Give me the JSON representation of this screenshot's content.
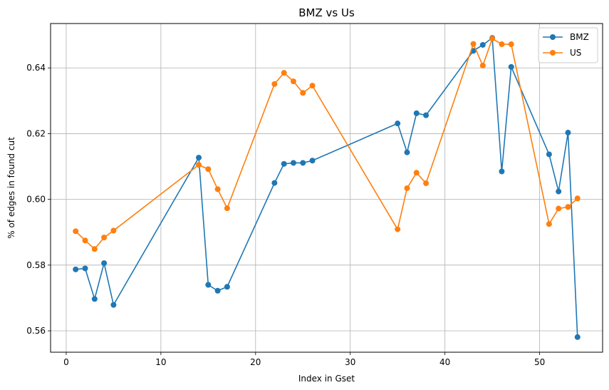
{
  "chart_data": {
    "type": "line",
    "title": "BMZ vs Us",
    "xlabel": "Index in Gset",
    "ylabel": "% of edges in found cut",
    "xlim": [
      -1.65,
      56.65
    ],
    "ylim": [
      0.5535,
      0.6535
    ],
    "xticks": [
      0,
      10,
      20,
      30,
      40,
      50
    ],
    "yticks": [
      0.56,
      0.58,
      0.6,
      0.62,
      0.64
    ],
    "ytick_labels": [
      "0.56",
      "0.58",
      "0.60",
      "0.62",
      "0.64"
    ],
    "grid": true,
    "legend_position": "top-right",
    "series": [
      {
        "name": "BMZ",
        "color": "#1f77b4",
        "x": [
          1,
          2,
          3,
          4,
          5,
          14,
          15,
          16,
          17,
          22,
          23,
          24,
          25,
          26,
          35,
          36,
          37,
          38,
          43,
          44,
          45,
          46,
          47,
          51,
          52,
          53,
          54
        ],
        "y": [
          0.5787,
          0.579,
          0.5697,
          0.5806,
          0.5679,
          0.6127,
          0.574,
          0.5722,
          0.5734,
          0.605,
          0.6108,
          0.6111,
          0.6111,
          0.6118,
          0.6231,
          0.6143,
          0.6262,
          0.6256,
          0.6452,
          0.647,
          0.6491,
          0.6085,
          0.6403,
          0.6137,
          0.6024,
          0.6203,
          0.5581
        ]
      },
      {
        "name": "US",
        "color": "#ff7f0e",
        "x": [
          1,
          2,
          3,
          4,
          5,
          14,
          15,
          16,
          17,
          22,
          23,
          24,
          25,
          26,
          35,
          36,
          37,
          38,
          43,
          44,
          45,
          46,
          47,
          51,
          52,
          53,
          54
        ],
        "y": [
          0.5903,
          0.5875,
          0.5849,
          0.5884,
          0.5905,
          0.6105,
          0.6092,
          0.6031,
          0.5973,
          0.6351,
          0.6385,
          0.6359,
          0.6324,
          0.6346,
          0.5909,
          0.6034,
          0.6081,
          0.6049,
          0.6473,
          0.6407,
          0.6489,
          0.6472,
          0.6472,
          0.5925,
          0.5972,
          0.5977,
          0.6003
        ]
      }
    ]
  }
}
